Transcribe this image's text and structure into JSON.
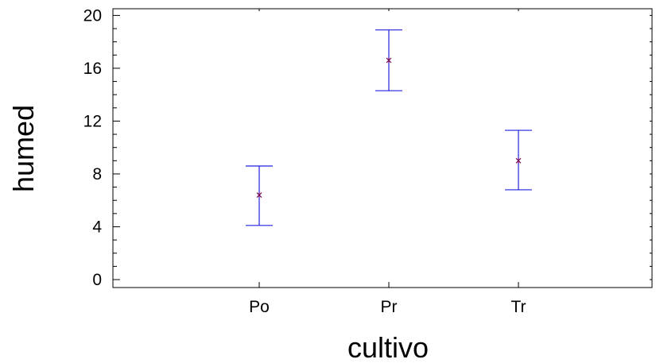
{
  "chart_data": {
    "type": "errorbar",
    "xlabel": "cultivo",
    "ylabel": "humed",
    "categories": [
      "Po",
      "Pr",
      "Tr"
    ],
    "mean": [
      6.4,
      16.6,
      9.0
    ],
    "lower": [
      4.1,
      14.3,
      6.8
    ],
    "upper": [
      8.6,
      18.9,
      11.3
    ],
    "ylim": [
      -0.5,
      20.5
    ],
    "yticks": [
      "0",
      "4",
      "8",
      "12",
      "16",
      "20"
    ],
    "colors": {
      "error_bar": "#2222dd",
      "mean_marker": "#7a1060",
      "axis": "#000000"
    }
  }
}
